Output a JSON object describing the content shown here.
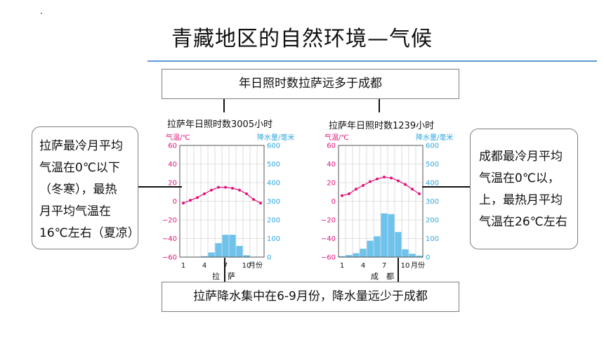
{
  "page": {
    "title": "青藏地区的自然环境—气候",
    "top_box": "年日照时数拉萨远多于成都",
    "bottom_box": "拉萨降水集中在6-9月份，降水量远少于成都",
    "left_note": [
      "拉萨最冷月平均",
      "气温在0℃以下",
      "（冬寒），最热",
      "月平均气温在",
      "16℃左右（夏凉）"
    ],
    "right_note": [
      "成都最冷月平均",
      "气温在0℃以，",
      "上，最热月平均",
      "气温在26℃左右"
    ]
  },
  "charts": {
    "lhasa": {
      "caption": "拉萨年日照时数3005小时",
      "city_label": "拉　萨",
      "left_axis_title": "气温/℃",
      "right_axis_title": "降水量/毫米",
      "month_unit": "月份"
    },
    "chengdu": {
      "caption": "拉萨年日照时数1239小时",
      "city_label": "成　都",
      "left_axis_title": "气温/℃",
      "right_axis_title": "降水量/毫米",
      "month_unit": "月份"
    }
  },
  "chart_data": [
    {
      "type": "bar",
      "months": [
        1,
        2,
        3,
        4,
        5,
        6,
        7,
        8,
        9,
        10,
        11,
        12
      ],
      "x_tick_labels": [
        "1",
        "4",
        "7",
        "10"
      ],
      "temperature_axis": {
        "ticks": [
          60,
          40,
          20,
          0,
          -20,
          -40,
          -60
        ],
        "ylim": [
          -60,
          60
        ]
      },
      "precipitation_axis": {
        "ticks": [
          600,
          500,
          400,
          300,
          200,
          100,
          0
        ],
        "ylim": [
          0,
          600
        ]
      },
      "series": [
        {
          "values": [
            -2,
            1,
            4,
            8,
            12,
            15,
            15,
            14,
            12,
            8,
            2,
            -2
          ]
        },
        {
          "values": [
            0,
            1,
            2,
            5,
            25,
            75,
            120,
            120,
            60,
            10,
            1,
            0
          ]
        }
      ],
      "colors": {
        "temperature": "#e2147c",
        "precipitation": "#6ec3ec"
      }
    },
    {
      "type": "bar",
      "months": [
        1,
        2,
        3,
        4,
        5,
        6,
        7,
        8,
        9,
        10,
        11,
        12
      ],
      "x_tick_labels": [
        "1",
        "4",
        "7",
        "10"
      ],
      "temperature_axis": {
        "ticks": [
          60,
          40,
          20,
          0,
          -20,
          -40,
          -60
        ],
        "ylim": [
          -60,
          60
        ]
      },
      "precipitation_axis": {
        "ticks": [
          600,
          500,
          400,
          300,
          200,
          100,
          0
        ],
        "ylim": [
          0,
          600
        ]
      },
      "series": [
        {
          "values": [
            6,
            8,
            13,
            17,
            21,
            24,
            26,
            25,
            22,
            18,
            13,
            8
          ]
        },
        {
          "values": [
            5,
            11,
            21,
            45,
            88,
            112,
            235,
            231,
            135,
            42,
            18,
            8
          ]
        }
      ],
      "colors": {
        "temperature": "#e2147c",
        "precipitation": "#6ec3ec"
      }
    }
  ]
}
